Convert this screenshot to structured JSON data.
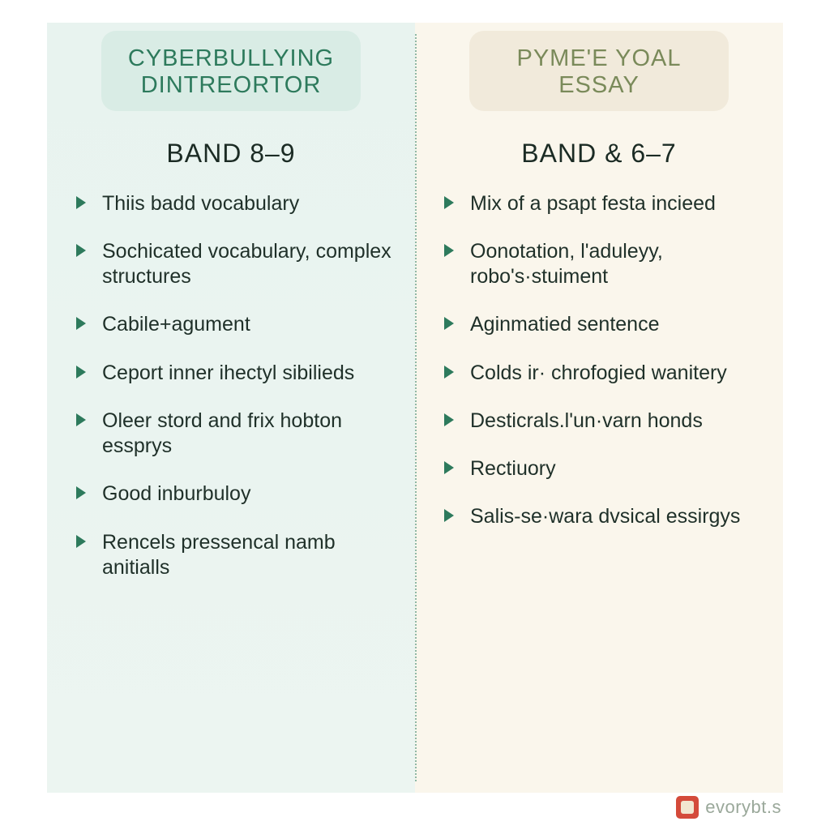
{
  "left": {
    "pill_bg": "#d9ece5",
    "pill_text_color": "#2d7a5c",
    "panel_bg": "#e8f3ef",
    "title_line1": "CYBERBULLYING",
    "title_line2": "DINTREORTOR",
    "band": "BAND 8–9",
    "bullet_color": "#2d7a5c",
    "items": [
      "Thiis badd vocabulary",
      "Sochicated vocabulary, complex structures",
      "Cabile+agument",
      "Ceport inner ihectyl sibilieds",
      "Oleer stord and frix hobton essprys",
      "Good inburbuloy",
      "Rencels pressencal namb anitialls"
    ]
  },
  "right": {
    "pill_bg": "#f1eadb",
    "pill_text_color": "#7a8a5a",
    "panel_bg": "#faf6ec",
    "title_line1": "PYME'E YOAL",
    "title_line2": "ESSAY",
    "band": "BAND & 6–7",
    "bullet_color": "#2d7a5c",
    "items": [
      "Mix of a psapt festa incieed",
      "Oonotation, l'aduleyy, robo's·stuiment",
      "Aginmatied sentence",
      "Colds ir· chrofogied wanitery",
      "Desticrals.l'un·varn honds",
      "Rectiuory",
      "Salis-se·wara dvsical essirgys"
    ]
  },
  "divider_color": "#8fb8a5",
  "footer": {
    "logo_bg": "#d44a3a",
    "text": "evorybt.s",
    "text_color": "#9aa89a"
  },
  "typography": {
    "pill_title_fontsize": 29,
    "band_fontsize": 32,
    "item_fontsize": 25
  }
}
